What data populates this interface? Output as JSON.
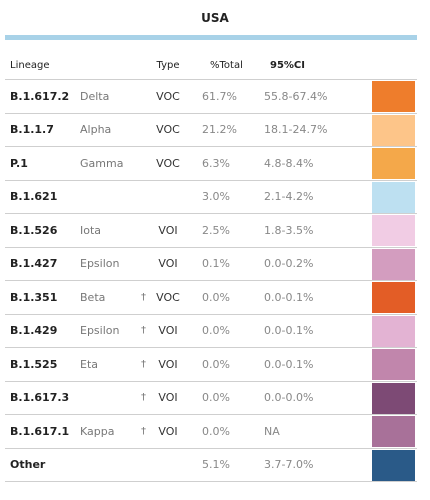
{
  "title": "USA",
  "headers": {
    "lineage": "Lineage",
    "type": "Type",
    "pct": "%Total",
    "ci": "95%CI"
  },
  "rows": [
    {
      "lineage": "B.1.617.2",
      "name": "Delta",
      "dagger": "",
      "type": "VOC",
      "pct": "61.7%",
      "ci": "55.8-67.4%",
      "color": "#ee7d2c"
    },
    {
      "lineage": "B.1.1.7",
      "name": "Alpha",
      "dagger": "",
      "type": "VOC",
      "pct": "21.2%",
      "ci": "18.1-24.7%",
      "color": "#fdc589"
    },
    {
      "lineage": "P.1",
      "name": "Gamma",
      "dagger": "",
      "type": "VOC",
      "pct": "6.3%",
      "ci": "4.8-8.4%",
      "color": "#f4a84a"
    },
    {
      "lineage": "B.1.621",
      "name": "",
      "dagger": "",
      "type": "",
      "pct": "3.0%",
      "ci": "2.1-4.2%",
      "color": "#bde0f1"
    },
    {
      "lineage": "B.1.526",
      "name": "Iota",
      "dagger": "",
      "type": "VOI",
      "pct": "2.5%",
      "ci": "1.8-3.5%",
      "color": "#f1cce4"
    },
    {
      "lineage": "B.1.427",
      "name": "Epsilon",
      "dagger": "",
      "type": "VOI",
      "pct": "0.1%",
      "ci": "0.0-0.2%",
      "color": "#d39dbf"
    },
    {
      "lineage": "B.1.351",
      "name": "Beta",
      "dagger": "†",
      "type": "VOC",
      "pct": "0.0%",
      "ci": "0.0-0.1%",
      "color": "#e35d26"
    },
    {
      "lineage": "B.1.429",
      "name": "Epsilon",
      "dagger": "†",
      "type": "VOI",
      "pct": "0.0%",
      "ci": "0.0-0.1%",
      "color": "#e3b3d3"
    },
    {
      "lineage": "B.1.525",
      "name": "Eta",
      "dagger": "†",
      "type": "VOI",
      "pct": "0.0%",
      "ci": "0.0-0.1%",
      "color": "#c186ac"
    },
    {
      "lineage": "B.1.617.3",
      "name": "",
      "dagger": "†",
      "type": "VOI",
      "pct": "0.0%",
      "ci": "0.0-0.0%",
      "color": "#7d4a75"
    },
    {
      "lineage": "B.1.617.1",
      "name": "Kappa",
      "dagger": "†",
      "type": "VOI",
      "pct": "0.0%",
      "ci": "NA",
      "color": "#a87199"
    },
    {
      "lineage": "Other",
      "name": "",
      "dagger": "",
      "type": "",
      "pct": "5.1%",
      "ci": "3.7-7.0%",
      "color": "#2a5a88"
    }
  ]
}
